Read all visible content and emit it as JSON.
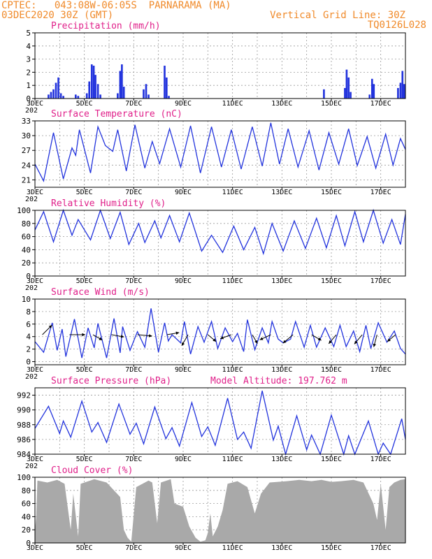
{
  "header": {
    "line1": "CPTEC:   043:08W-06:05S  PARNARAMA (MA)",
    "line2": "03DEC2020 30Z (GMT)",
    "grid_note": "Vertical Grid Line: 30Z",
    "code": "TQ0126L028"
  },
  "colors": {
    "header": "#f08a2a",
    "title": "#e0208a",
    "line": "#2233dd",
    "bar": "#2233dd",
    "cloud": "#a9a9a9"
  },
  "x_ticks": [
    "3DEC",
    "5DEC",
    "7DEC",
    "9DEC",
    "11DEC",
    "13DEC",
    "15DEC",
    "17DEC"
  ],
  "x_sub": "202",
  "chart_data": [
    {
      "type": "bar",
      "title": "Precipitation (mm/h)",
      "x_range_days": [
        0,
        15
      ],
      "ylim": [
        0,
        5
      ],
      "yticks": [
        "0",
        "1",
        "2",
        "3",
        "4",
        "5"
      ],
      "events": [
        {
          "day": 0.55,
          "value": 0.3
        },
        {
          "day": 0.65,
          "value": 0.5
        },
        {
          "day": 0.75,
          "value": 0.7
        },
        {
          "day": 0.85,
          "value": 1.2
        },
        {
          "day": 0.95,
          "value": 1.6
        },
        {
          "day": 1.05,
          "value": 0.4
        },
        {
          "day": 1.15,
          "value": 0.2
        },
        {
          "day": 1.65,
          "value": 0.3
        },
        {
          "day": 1.75,
          "value": 0.2
        },
        {
          "day": 2.1,
          "value": 0.4
        },
        {
          "day": 2.2,
          "value": 1.3
        },
        {
          "day": 2.3,
          "value": 2.6
        },
        {
          "day": 2.38,
          "value": 2.5
        },
        {
          "day": 2.45,
          "value": 1.8
        },
        {
          "day": 2.55,
          "value": 1.1
        },
        {
          "day": 2.65,
          "value": 0.3
        },
        {
          "day": 3.35,
          "value": 0.4
        },
        {
          "day": 3.45,
          "value": 2.1
        },
        {
          "day": 3.52,
          "value": 2.6
        },
        {
          "day": 3.6,
          "value": 0.9
        },
        {
          "day": 4.4,
          "value": 0.7
        },
        {
          "day": 4.5,
          "value": 1.1
        },
        {
          "day": 4.6,
          "value": 0.3
        },
        {
          "day": 5.25,
          "value": 2.5
        },
        {
          "day": 5.33,
          "value": 1.6
        },
        {
          "day": 5.42,
          "value": 0.2
        },
        {
          "day": 11.7,
          "value": 0.7
        },
        {
          "day": 12.55,
          "value": 0.8
        },
        {
          "day": 12.62,
          "value": 2.2
        },
        {
          "day": 12.7,
          "value": 1.6
        },
        {
          "day": 12.78,
          "value": 0.5
        },
        {
          "day": 13.55,
          "value": 0.3
        },
        {
          "day": 13.65,
          "value": 1.5
        },
        {
          "day": 13.72,
          "value": 1.1
        },
        {
          "day": 14.7,
          "value": 0.8
        },
        {
          "day": 14.8,
          "value": 1.2
        },
        {
          "day": 14.88,
          "value": 2.1
        },
        {
          "day": 14.95,
          "value": 1.1
        }
      ]
    },
    {
      "type": "line",
      "title": "Surface Temperature (nC)",
      "x_range_days": [
        0,
        15
      ],
      "ylim": [
        19.5,
        33
      ],
      "yticks": [
        "21",
        "24",
        "27",
        "30",
        "33"
      ],
      "points": [
        [
          0,
          24.2
        ],
        [
          0.35,
          20.8
        ],
        [
          0.75,
          30.6
        ],
        [
          1.15,
          21.2
        ],
        [
          1.5,
          27.5
        ],
        [
          1.65,
          26
        ],
        [
          1.8,
          31.2
        ],
        [
          2.25,
          22.4
        ],
        [
          2.55,
          31.8
        ],
        [
          2.85,
          28
        ],
        [
          3.15,
          26.8
        ],
        [
          3.35,
          31.2
        ],
        [
          3.7,
          22.8
        ],
        [
          4.05,
          32.2
        ],
        [
          4.45,
          23.4
        ],
        [
          4.75,
          28.8
        ],
        [
          5.05,
          24.3
        ],
        [
          5.45,
          31.4
        ],
        [
          5.9,
          23.6
        ],
        [
          6.3,
          32
        ],
        [
          6.7,
          22.4
        ],
        [
          7.15,
          31.8
        ],
        [
          7.55,
          23.6
        ],
        [
          7.95,
          31.2
        ],
        [
          8.35,
          23.2
        ],
        [
          8.8,
          31.8
        ],
        [
          9.2,
          23.8
        ],
        [
          9.55,
          32.6
        ],
        [
          9.9,
          24.2
        ],
        [
          10.25,
          31.4
        ],
        [
          10.65,
          23.6
        ],
        [
          11.1,
          31
        ],
        [
          11.5,
          23
        ],
        [
          11.9,
          30.6
        ],
        [
          12.3,
          24.2
        ],
        [
          12.7,
          31.4
        ],
        [
          13.05,
          23.9
        ],
        [
          13.45,
          29.8
        ],
        [
          13.8,
          23.4
        ],
        [
          14.2,
          30.3
        ],
        [
          14.5,
          24
        ],
        [
          14.8,
          29.4
        ],
        [
          15,
          27.2
        ]
      ]
    },
    {
      "type": "line",
      "title": "Relative Humidity (%)",
      "x_range_days": [
        0,
        15
      ],
      "ylim": [
        0,
        100
      ],
      "yticks": [
        "0",
        "20",
        "40",
        "60",
        "80",
        "100"
      ],
      "points": [
        [
          0,
          70
        ],
        [
          0.35,
          98
        ],
        [
          0.75,
          52
        ],
        [
          1.15,
          100
        ],
        [
          1.5,
          62
        ],
        [
          1.75,
          86
        ],
        [
          2.25,
          55
        ],
        [
          2.65,
          100
        ],
        [
          3.05,
          57
        ],
        [
          3.45,
          97
        ],
        [
          3.8,
          48
        ],
        [
          4.2,
          80
        ],
        [
          4.45,
          51
        ],
        [
          4.85,
          84
        ],
        [
          5.1,
          58
        ],
        [
          5.45,
          92
        ],
        [
          5.85,
          52
        ],
        [
          6.25,
          96
        ],
        [
          6.75,
          38
        ],
        [
          7.15,
          62
        ],
        [
          7.6,
          36
        ],
        [
          8.05,
          76
        ],
        [
          8.45,
          40
        ],
        [
          8.9,
          74
        ],
        [
          9.25,
          34
        ],
        [
          9.6,
          80
        ],
        [
          10.05,
          38
        ],
        [
          10.5,
          84
        ],
        [
          10.95,
          42
        ],
        [
          11.4,
          88
        ],
        [
          11.8,
          43
        ],
        [
          12.2,
          92
        ],
        [
          12.55,
          46
        ],
        [
          12.95,
          98
        ],
        [
          13.3,
          52
        ],
        [
          13.7,
          100
        ],
        [
          14.1,
          50
        ],
        [
          14.45,
          86
        ],
        [
          14.8,
          48
        ],
        [
          15,
          94
        ]
      ]
    },
    {
      "type": "line",
      "title": "Surface Wind (m/s)",
      "x_range_days": [
        0,
        15
      ],
      "ylim": [
        -0.5,
        10
      ],
      "yticks": [
        "0",
        "2",
        "4",
        "6",
        "8",
        "10"
      ],
      "points": [
        [
          0,
          3.2
        ],
        [
          0.35,
          1.5
        ],
        [
          0.7,
          6.2
        ],
        [
          0.9,
          1.8
        ],
        [
          1.1,
          5.2
        ],
        [
          1.25,
          0.8
        ],
        [
          1.6,
          6.8
        ],
        [
          1.9,
          0.6
        ],
        [
          2.15,
          5.4
        ],
        [
          2.4,
          2.2
        ],
        [
          2.55,
          6.1
        ],
        [
          2.9,
          0.6
        ],
        [
          3.2,
          6.9
        ],
        [
          3.45,
          1.4
        ],
        [
          3.55,
          5.6
        ],
        [
          3.85,
          1.8
        ],
        [
          4.15,
          4.8
        ],
        [
          4.45,
          2.3
        ],
        [
          4.7,
          8.5
        ],
        [
          5.0,
          1.5
        ],
        [
          5.25,
          6.2
        ],
        [
          5.4,
          3.3
        ],
        [
          5.55,
          4.3
        ],
        [
          5.9,
          3.0
        ],
        [
          6.05,
          6.4
        ],
        [
          6.3,
          1.2
        ],
        [
          6.6,
          5.6
        ],
        [
          6.85,
          3.1
        ],
        [
          7.15,
          6.4
        ],
        [
          7.4,
          2.1
        ],
        [
          7.7,
          5.4
        ],
        [
          8.0,
          3.2
        ],
        [
          8.2,
          4.5
        ],
        [
          8.45,
          1.6
        ],
        [
          8.6,
          6.7
        ],
        [
          8.9,
          1.9
        ],
        [
          9.2,
          5.4
        ],
        [
          9.45,
          3.0
        ],
        [
          9.6,
          6.4
        ],
        [
          9.85,
          3.6
        ],
        [
          10.05,
          3.0
        ],
        [
          10.35,
          3.6
        ],
        [
          10.55,
          6.4
        ],
        [
          10.9,
          2.3
        ],
        [
          11.15,
          5.8
        ],
        [
          11.4,
          2.3
        ],
        [
          11.75,
          5.4
        ],
        [
          12.1,
          2.4
        ],
        [
          12.35,
          5.8
        ],
        [
          12.6,
          2.4
        ],
        [
          12.9,
          4.9
        ],
        [
          13.15,
          1.6
        ],
        [
          13.4,
          5.8
        ],
        [
          13.6,
          2.1
        ],
        [
          13.9,
          6.2
        ],
        [
          14.25,
          3.1
        ],
        [
          14.55,
          4.9
        ],
        [
          14.8,
          2.1
        ],
        [
          15,
          1.2
        ]
      ],
      "vectors": [
        {
          "day": 0.3,
          "dir": 45,
          "speed": 2.8
        },
        {
          "day": 1.4,
          "dir": 90,
          "speed": 3.2
        },
        {
          "day": 2.35,
          "dir": 120,
          "speed": 2.2
        },
        {
          "day": 3.1,
          "dir": 100,
          "speed": 2.6
        },
        {
          "day": 4.15,
          "dir": 95,
          "speed": 3.0
        },
        {
          "day": 5.35,
          "dir": 80,
          "speed": 2.5
        },
        {
          "day": 6.2,
          "dir": 210,
          "speed": 2.6
        },
        {
          "day": 7.0,
          "dir": 130,
          "speed": 2.2
        },
        {
          "day": 7.95,
          "dir": 250,
          "speed": 2.4
        },
        {
          "day": 8.8,
          "dir": 150,
          "speed": 2.1
        },
        {
          "day": 9.55,
          "dir": 245,
          "speed": 2.5
        },
        {
          "day": 10.45,
          "dir": 230,
          "speed": 2.7
        },
        {
          "day": 11.2,
          "dir": 120,
          "speed": 2.3
        },
        {
          "day": 12.2,
          "dir": 220,
          "speed": 2.4
        },
        {
          "day": 13.25,
          "dir": 220,
          "speed": 2.5
        },
        {
          "day": 13.85,
          "dir": 195,
          "speed": 2.6
        },
        {
          "day": 14.6,
          "dir": 230,
          "speed": 2.2
        }
      ]
    },
    {
      "type": "line",
      "title": "Surface Pressure (hPa)",
      "subtitle": "Model Altitude: 197.762 m",
      "x_range_days": [
        0,
        15
      ],
      "ylim": [
        984,
        993
      ],
      "yticks": [
        "984",
        "986",
        "988",
        "990",
        "992"
      ],
      "points": [
        [
          0,
          987.5
        ],
        [
          0.55,
          990.5
        ],
        [
          1.0,
          986.8
        ],
        [
          1.15,
          988.5
        ],
        [
          1.45,
          986.3
        ],
        [
          1.9,
          991.2
        ],
        [
          2.3,
          987.0
        ],
        [
          2.55,
          988.3
        ],
        [
          2.9,
          985.6
        ],
        [
          3.4,
          990.8
        ],
        [
          3.85,
          986.7
        ],
        [
          4.1,
          988.2
        ],
        [
          4.4,
          985.4
        ],
        [
          4.85,
          990.4
        ],
        [
          5.3,
          986.1
        ],
        [
          5.55,
          987.6
        ],
        [
          5.85,
          985.1
        ],
        [
          6.35,
          991.0
        ],
        [
          6.75,
          986.4
        ],
        [
          7.0,
          987.7
        ],
        [
          7.3,
          985.2
        ],
        [
          7.8,
          991.6
        ],
        [
          8.2,
          986.0
        ],
        [
          8.45,
          987.0
        ],
        [
          8.75,
          984.8
        ],
        [
          9.2,
          992.6
        ],
        [
          9.65,
          985.9
        ],
        [
          9.85,
          987.8
        ],
        [
          10.15,
          984.0
        ],
        [
          10.6,
          989.2
        ],
        [
          11.0,
          984.6
        ],
        [
          11.2,
          986.6
        ],
        [
          11.55,
          983.6
        ],
        [
          12.0,
          989.3
        ],
        [
          12.5,
          984.0
        ],
        [
          12.7,
          986.5
        ],
        [
          12.95,
          983.7
        ],
        [
          13.5,
          988.5
        ],
        [
          13.9,
          983.8
        ],
        [
          14.1,
          985.5
        ],
        [
          14.4,
          983.6
        ],
        [
          14.85,
          988.8
        ],
        [
          15,
          986.0
        ]
      ]
    },
    {
      "type": "area",
      "title": "Cloud Cover (%)",
      "x_range_days": [
        0,
        15
      ],
      "ylim": [
        0,
        100
      ],
      "yticks": [
        "0",
        "20",
        "40",
        "60",
        "80",
        "100"
      ],
      "points": [
        [
          0,
          20
        ],
        [
          0.05,
          40
        ],
        [
          0.1,
          95
        ],
        [
          0.5,
          92
        ],
        [
          0.9,
          96
        ],
        [
          1.2,
          90
        ],
        [
          1.45,
          20
        ],
        [
          1.55,
          75
        ],
        [
          1.75,
          10
        ],
        [
          1.85,
          90
        ],
        [
          2.4,
          97
        ],
        [
          2.9,
          92
        ],
        [
          3.45,
          70
        ],
        [
          3.6,
          20
        ],
        [
          3.75,
          8
        ],
        [
          3.9,
          2
        ],
        [
          4.1,
          85
        ],
        [
          4.6,
          95
        ],
        [
          4.75,
          92
        ],
        [
          4.95,
          30
        ],
        [
          5.1,
          92
        ],
        [
          5.5,
          97
        ],
        [
          5.65,
          60
        ],
        [
          6.0,
          55
        ],
        [
          6.25,
          25
        ],
        [
          6.5,
          8
        ],
        [
          6.7,
          2
        ],
        [
          6.9,
          4
        ],
        [
          7.0,
          15
        ],
        [
          7.1,
          45
        ],
        [
          7.2,
          10
        ],
        [
          7.4,
          25
        ],
        [
          7.6,
          50
        ],
        [
          7.8,
          90
        ],
        [
          8.2,
          94
        ],
        [
          8.6,
          85
        ],
        [
          8.9,
          45
        ],
        [
          9.15,
          75
        ],
        [
          9.5,
          92
        ],
        [
          10.2,
          94
        ],
        [
          10.7,
          96
        ],
        [
          11.2,
          94
        ],
        [
          11.6,
          96
        ],
        [
          12.0,
          93
        ],
        [
          12.4,
          94
        ],
        [
          12.9,
          96
        ],
        [
          13.3,
          92
        ],
        [
          13.7,
          60
        ],
        [
          13.85,
          35
        ],
        [
          14.0,
          90
        ],
        [
          14.2,
          20
        ],
        [
          14.35,
          85
        ],
        [
          14.55,
          92
        ],
        [
          14.8,
          96
        ],
        [
          15,
          97
        ]
      ]
    }
  ]
}
